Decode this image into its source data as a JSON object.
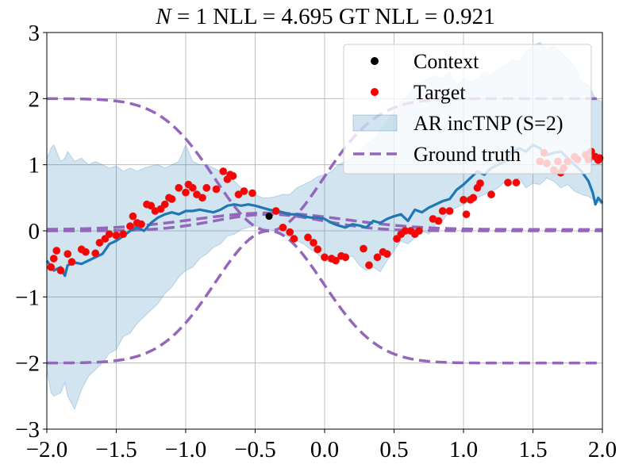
{
  "chart_data": {
    "type": "line",
    "title": "N = 1 NLL = 4.695 GT NLL = 0.921",
    "title_parts": {
      "n_symbol": "N",
      "rest": " = 1 NLL = 4.695 GT NLL = 0.921"
    },
    "xlim": [
      -2.0,
      2.0
    ],
    "ylim": [
      -3,
      3
    ],
    "grid": true,
    "legend_position": "upper-right",
    "x_ticks": [
      "−2.0",
      "−1.5",
      "−1.0",
      "−0.5",
      "0.0",
      "0.5",
      "1.0",
      "1.5",
      "2.0"
    ],
    "x_tick_values": [
      -2.0,
      -1.5,
      -1.0,
      -0.5,
      0.0,
      0.5,
      1.0,
      1.5,
      2.0
    ],
    "y_ticks": [
      "−3",
      "−2",
      "−1",
      "0",
      "1",
      "2",
      "3"
    ],
    "y_tick_values": [
      -3,
      -2,
      -1,
      0,
      1,
      2,
      3
    ],
    "legend": [
      {
        "label": "Context",
        "kind": "dot",
        "color": "#000000"
      },
      {
        "label": "Target",
        "kind": "dot",
        "color": "#ff0000"
      },
      {
        "label": "AR incTNP (S=2)",
        "kind": "band",
        "color": "#1f77b4"
      },
      {
        "label": "Ground truth",
        "kind": "dash",
        "color": "#9467bd"
      }
    ],
    "colors": {
      "mean": "#1f77b4",
      "band": "#1f77b4",
      "ground_truth": "#9467bd",
      "target": "#ff0000",
      "target_edge": "#d62728",
      "context": "#000000"
    },
    "context": [
      {
        "x": -0.4,
        "y": 0.22
      }
    ],
    "target": [
      {
        "x": -1.97,
        "y": -0.55
      },
      {
        "x": -1.95,
        "y": -0.42
      },
      {
        "x": -1.93,
        "y": -0.3
      },
      {
        "x": -1.9,
        "y": -0.6
      },
      {
        "x": -1.85,
        "y": -0.35
      },
      {
        "x": -1.82,
        "y": -0.47
      },
      {
        "x": -1.75,
        "y": -0.28
      },
      {
        "x": -1.72,
        "y": -0.32
      },
      {
        "x": -1.65,
        "y": -0.34
      },
      {
        "x": -1.62,
        "y": -0.18
      },
      {
        "x": -1.58,
        "y": -0.12
      },
      {
        "x": -1.55,
        "y": -0.05
      },
      {
        "x": -1.5,
        "y": -0.07
      },
      {
        "x": -1.45,
        "y": -0.05
      },
      {
        "x": -1.4,
        "y": 0.07
      },
      {
        "x": -1.38,
        "y": 0.22
      },
      {
        "x": -1.35,
        "y": 0.12
      },
      {
        "x": -1.32,
        "y": 0.1
      },
      {
        "x": -1.28,
        "y": 0.4
      },
      {
        "x": -1.25,
        "y": 0.38
      },
      {
        "x": -1.22,
        "y": 0.3
      },
      {
        "x": -1.18,
        "y": 0.33
      },
      {
        "x": -1.15,
        "y": 0.4
      },
      {
        "x": -1.12,
        "y": 0.5
      },
      {
        "x": -1.1,
        "y": 0.48
      },
      {
        "x": -1.05,
        "y": 0.65
      },
      {
        "x": -1.0,
        "y": 0.58
      },
      {
        "x": -0.98,
        "y": 0.7
      },
      {
        "x": -0.95,
        "y": 0.65
      },
      {
        "x": -0.92,
        "y": 0.55
      },
      {
        "x": -0.88,
        "y": 0.5
      },
      {
        "x": -0.85,
        "y": 0.65
      },
      {
        "x": -0.78,
        "y": 0.63
      },
      {
        "x": -0.73,
        "y": 0.9
      },
      {
        "x": -0.7,
        "y": 0.78
      },
      {
        "x": -0.68,
        "y": 0.85
      },
      {
        "x": -0.66,
        "y": 0.83
      },
      {
        "x": -0.62,
        "y": 0.55
      },
      {
        "x": -0.58,
        "y": 0.6
      },
      {
        "x": -0.52,
        "y": 0.57
      },
      {
        "x": -0.35,
        "y": 0.3
      },
      {
        "x": -0.3,
        "y": 0.05
      },
      {
        "x": -0.25,
        "y": -0.02
      },
      {
        "x": -0.22,
        "y": -0.12
      },
      {
        "x": -0.12,
        "y": -0.1
      },
      {
        "x": -0.08,
        "y": -0.18
      },
      {
        "x": -0.05,
        "y": -0.28
      },
      {
        "x": 0.0,
        "y": -0.4
      },
      {
        "x": 0.05,
        "y": -0.42
      },
      {
        "x": 0.08,
        "y": -0.45
      },
      {
        "x": 0.12,
        "y": -0.38
      },
      {
        "x": 0.15,
        "y": -0.4
      },
      {
        "x": 0.28,
        "y": -0.27
      },
      {
        "x": 0.32,
        "y": -0.52
      },
      {
        "x": 0.38,
        "y": -0.4
      },
      {
        "x": 0.42,
        "y": -0.32
      },
      {
        "x": 0.45,
        "y": -0.35
      },
      {
        "x": 0.52,
        "y": -0.12
      },
      {
        "x": 0.55,
        "y": -0.05
      },
      {
        "x": 0.58,
        "y": 0.0
      },
      {
        "x": 0.62,
        "y": 0.0
      },
      {
        "x": 0.65,
        "y": -0.05
      },
      {
        "x": 0.68,
        "y": 0.0
      },
      {
        "x": 0.78,
        "y": 0.18
      },
      {
        "x": 0.82,
        "y": 0.15
      },
      {
        "x": 0.85,
        "y": 0.3
      },
      {
        "x": 0.9,
        "y": 0.3
      },
      {
        "x": 1.0,
        "y": 0.47
      },
      {
        "x": 1.02,
        "y": 0.25
      },
      {
        "x": 1.05,
        "y": 0.47
      },
      {
        "x": 1.07,
        "y": 0.5
      },
      {
        "x": 1.1,
        "y": 0.65
      },
      {
        "x": 1.12,
        "y": 0.72
      },
      {
        "x": 1.2,
        "y": 0.55
      },
      {
        "x": 1.32,
        "y": 0.73
      },
      {
        "x": 1.38,
        "y": 0.73
      },
      {
        "x": 1.55,
        "y": 1.05
      },
      {
        "x": 1.58,
        "y": 1.18
      },
      {
        "x": 1.6,
        "y": 1.02
      },
      {
        "x": 1.65,
        "y": 0.92
      },
      {
        "x": 1.68,
        "y": 1.05
      },
      {
        "x": 1.7,
        "y": 0.88
      },
      {
        "x": 1.72,
        "y": 0.95
      },
      {
        "x": 1.75,
        "y": 1.05
      },
      {
        "x": 1.8,
        "y": 1.12
      },
      {
        "x": 1.82,
        "y": 1.08
      },
      {
        "x": 1.88,
        "y": 1.15
      },
      {
        "x": 1.9,
        "y": 1.08
      },
      {
        "x": 1.92,
        "y": 1.2
      },
      {
        "x": 1.95,
        "y": 1.12
      },
      {
        "x": 1.97,
        "y": 1.07
      },
      {
        "x": 1.98,
        "y": 1.1
      }
    ],
    "mean": {
      "x": [
        -2.0,
        -1.95,
        -1.9,
        -1.87,
        -1.85,
        -1.8,
        -1.75,
        -1.7,
        -1.65,
        -1.6,
        -1.55,
        -1.5,
        -1.45,
        -1.4,
        -1.35,
        -1.3,
        -1.25,
        -1.2,
        -1.15,
        -1.1,
        -1.05,
        -1.0,
        -0.95,
        -0.9,
        -0.85,
        -0.8,
        -0.75,
        -0.7,
        -0.65,
        -0.6,
        -0.55,
        -0.5,
        -0.45,
        -0.4,
        -0.35,
        -0.3,
        -0.25,
        -0.2,
        -0.15,
        -0.1,
        -0.05,
        0.0,
        0.05,
        0.1,
        0.15,
        0.2,
        0.25,
        0.3,
        0.35,
        0.4,
        0.45,
        0.5,
        0.55,
        0.6,
        0.65,
        0.7,
        0.75,
        0.8,
        0.85,
        0.9,
        0.95,
        1.0,
        1.05,
        1.1,
        1.15,
        1.2,
        1.25,
        1.3,
        1.35,
        1.4,
        1.45,
        1.5,
        1.55,
        1.6,
        1.65,
        1.7,
        1.75,
        1.8,
        1.85,
        1.9,
        1.93,
        1.95,
        1.97,
        2.0
      ],
      "y": [
        -0.45,
        -0.6,
        -0.55,
        -0.68,
        -0.52,
        -0.48,
        -0.5,
        -0.45,
        -0.4,
        -0.35,
        -0.2,
        -0.15,
        -0.08,
        0.0,
        0.05,
        0.0,
        0.12,
        0.2,
        0.25,
        0.28,
        0.25,
        0.3,
        0.3,
        0.32,
        0.3,
        0.28,
        0.32,
        0.38,
        0.4,
        0.38,
        0.4,
        0.38,
        0.35,
        0.32,
        0.3,
        0.28,
        0.25,
        0.25,
        0.22,
        0.2,
        0.2,
        0.18,
        0.12,
        0.08,
        0.05,
        0.1,
        0.08,
        0.05,
        0.15,
        0.12,
        0.18,
        0.22,
        0.25,
        0.15,
        0.32,
        0.28,
        0.35,
        0.4,
        0.45,
        0.48,
        0.62,
        0.7,
        0.8,
        0.9,
        0.85,
        0.95,
        1.0,
        1.05,
        1.2,
        1.25,
        1.2,
        1.3,
        1.25,
        1.15,
        1.18,
        1.2,
        1.1,
        1.0,
        0.9,
        0.75,
        0.58,
        0.4,
        0.5,
        0.42
      ]
    },
    "band": {
      "x": [
        -2.0,
        -1.97,
        -1.95,
        -1.9,
        -1.87,
        -1.85,
        -1.8,
        -1.75,
        -1.7,
        -1.65,
        -1.6,
        -1.55,
        -1.5,
        -1.45,
        -1.4,
        -1.35,
        -1.3,
        -1.25,
        -1.2,
        -1.15,
        -1.1,
        -1.05,
        -1.0,
        -0.95,
        -0.9,
        -0.85,
        -0.8,
        -0.75,
        -0.7,
        -0.65,
        -0.6,
        -0.55,
        -0.5,
        -0.45,
        -0.4,
        -0.35,
        -0.3,
        -0.25,
        -0.2,
        -0.15,
        -0.1,
        -0.05,
        0.0,
        0.05,
        0.1,
        0.15,
        0.2,
        0.25,
        0.3,
        0.35,
        0.4,
        0.45,
        0.5,
        0.55,
        0.6,
        0.65,
        0.7,
        0.75,
        0.8,
        0.85,
        0.9,
        0.95,
        1.0,
        1.05,
        1.1,
        1.15,
        1.2,
        1.25,
        1.3,
        1.35,
        1.4,
        1.45,
        1.5,
        1.55,
        1.6,
        1.65,
        1.7,
        1.75,
        1.8,
        1.85,
        1.9,
        1.95,
        2.0
      ],
      "upper": [
        1.1,
        1.25,
        1.3,
        1.05,
        1.1,
        1.2,
        1.05,
        1.1,
        1.0,
        1.05,
        1.0,
        0.95,
        0.98,
        0.9,
        0.95,
        0.9,
        0.95,
        0.98,
        1.0,
        0.95,
        1.0,
        1.05,
        1.3,
        1.05,
        1.0,
        1.0,
        0.95,
        0.9,
        0.85,
        0.75,
        0.65,
        0.6,
        0.55,
        0.5,
        0.5,
        0.52,
        0.55,
        0.55,
        0.65,
        0.7,
        0.75,
        0.82,
        0.85,
        0.9,
        1.0,
        1.05,
        1.1,
        1.2,
        1.3,
        1.38,
        1.5,
        1.65,
        1.8,
        1.95,
        2.05,
        2.2,
        2.25,
        2.3,
        2.35,
        2.3,
        2.4,
        2.2,
        2.3,
        2.25,
        2.3,
        2.4,
        2.35,
        2.45,
        2.5,
        2.6,
        2.55,
        2.7,
        2.8,
        2.85,
        2.75,
        2.8,
        2.7,
        2.6,
        2.5,
        2.25,
        2.2,
        2.0,
        1.95
      ],
      "lower": [
        -2.1,
        -2.45,
        -2.5,
        -2.45,
        -2.3,
        -2.5,
        -2.7,
        -2.4,
        -2.2,
        -2.1,
        -2.0,
        -1.85,
        -1.8,
        -1.6,
        -1.55,
        -1.4,
        -1.3,
        -1.2,
        -1.1,
        -0.95,
        -0.85,
        -0.7,
        -0.6,
        -0.55,
        -0.42,
        -0.35,
        -0.25,
        -0.2,
        -0.08,
        -0.05,
        0.02,
        0.05,
        0.08,
        0.05,
        0.02,
        0.0,
        -0.05,
        -0.1,
        -0.15,
        -0.2,
        -0.28,
        -0.35,
        -0.45,
        -0.48,
        -0.45,
        -0.42,
        -0.38,
        -0.52,
        -0.6,
        -0.55,
        -0.62,
        -0.45,
        -0.3,
        -0.15,
        -0.2,
        -0.1,
        0.0,
        -0.05,
        0.1,
        0.15,
        0.3,
        0.35,
        0.4,
        0.45,
        0.5,
        0.55,
        0.6,
        0.65,
        0.75,
        0.7,
        0.8,
        0.65,
        0.72,
        0.7,
        0.8,
        0.75,
        0.65,
        0.7,
        0.6,
        0.55,
        0.52,
        0.45,
        0.4
      ]
    },
    "ground_truth": {
      "center": -0.4,
      "width": 0.55,
      "amplitude": 2.0,
      "curves": 4
    }
  }
}
